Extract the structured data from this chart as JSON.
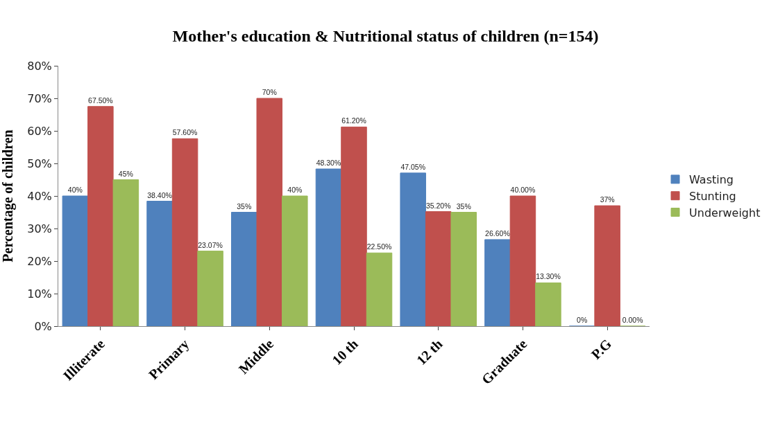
{
  "chart_data": {
    "type": "bar",
    "title": "Mother's education & Nutritional status of children (n=154)",
    "ylabel": "Percentage of children",
    "categories": [
      "Illiterate",
      "Primary",
      "Middle",
      "10 th",
      "12 th",
      "Graduate",
      "P.G"
    ],
    "series": [
      {
        "name": "Wasting",
        "color": "#4f81bd",
        "values": [
          40,
          38.4,
          35,
          48.3,
          47.05,
          26.6,
          0
        ],
        "value_labels": [
          "40%",
          "38.40%",
          "35%",
          "48.30%",
          "47.05%",
          "26.60%",
          "0%"
        ]
      },
      {
        "name": "Stunting",
        "color": "#c0504d",
        "values": [
          67.5,
          57.6,
          70,
          61.2,
          35.2,
          40.0,
          37
        ],
        "value_labels": [
          "67.50%",
          "57.60%",
          "70%",
          "61.20%",
          "35.20%",
          "40.00%",
          "37%"
        ]
      },
      {
        "name": "Underweight",
        "color": "#9bbb59",
        "values": [
          45,
          23.07,
          40,
          22.5,
          35,
          13.3,
          0
        ],
        "value_labels": [
          "45%",
          "23.07%",
          "40%",
          "22.50%",
          "35%",
          "13.30%",
          "0.00%"
        ]
      }
    ],
    "ylim": [
      0,
      80
    ],
    "yticks": [
      {
        "value": 0,
        "label": "0%"
      },
      {
        "value": 10,
        "label": "10%"
      },
      {
        "value": 20,
        "label": "20%"
      },
      {
        "value": 30,
        "label": "30%"
      },
      {
        "value": 40,
        "label": "40%"
      },
      {
        "value": 50,
        "label": "50%"
      },
      {
        "value": 60,
        "label": "60%"
      },
      {
        "value": 70,
        "label": "70%"
      },
      {
        "value": 80,
        "label": "80%"
      }
    ],
    "grid": false,
    "legend": "right"
  }
}
